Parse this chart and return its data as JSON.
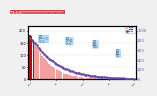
{
  "title": "図表1-1-5　熊本地震による熊本県の避難者数と避難所数の推移",
  "background_color": "#f0f0f0",
  "plot_bg": "#ffffff",
  "bar_color": "#f4a0a0",
  "bar_peak_color": "#cc0000",
  "line_color": "#6644aa",
  "line_marker": "o",
  "evacuees": [
    183882,
    178346,
    163422,
    148923,
    134000,
    121000,
    109000,
    98000,
    88000,
    79000,
    71000,
    64000,
    57000,
    51000,
    46000,
    41500,
    37000,
    33000,
    29500,
    26500,
    23800,
    21400,
    19200,
    17200,
    15400,
    13800,
    12300,
    11000,
    9800,
    8700,
    7800,
    7000,
    6300,
    5700,
    5100,
    4600,
    4200,
    3800,
    3400,
    3100,
    2800,
    2500,
    2300,
    2100,
    1900,
    1700,
    1500,
    1400,
    1250,
    1100,
    980,
    860,
    760,
    670,
    590,
    520,
    460,
    400,
    350,
    300
  ],
  "shelters": [
    855,
    820,
    780,
    740,
    700,
    650,
    610,
    570,
    530,
    490,
    460,
    430,
    400,
    370,
    345,
    320,
    298,
    278,
    258,
    240,
    223,
    207,
    192,
    178,
    165,
    153,
    142,
    132,
    122,
    113,
    105,
    97,
    90,
    84,
    78,
    72,
    67,
    62,
    58,
    54,
    50,
    46,
    43,
    40,
    37,
    35,
    32,
    30,
    28,
    26,
    24,
    22,
    20,
    19,
    17,
    16,
    15,
    13,
    12,
    11
  ],
  "ylim_left": [
    0,
    220000
  ],
  "ylim_right": [
    0,
    1100
  ],
  "yticks_left": [
    0,
    50000,
    100000,
    150000,
    200000
  ],
  "yticks_right": [
    0,
    200,
    400,
    600,
    800,
    1000
  ],
  "callout_color": "#aaddff",
  "callout_border": "#88bbee",
  "n_points": 60
}
